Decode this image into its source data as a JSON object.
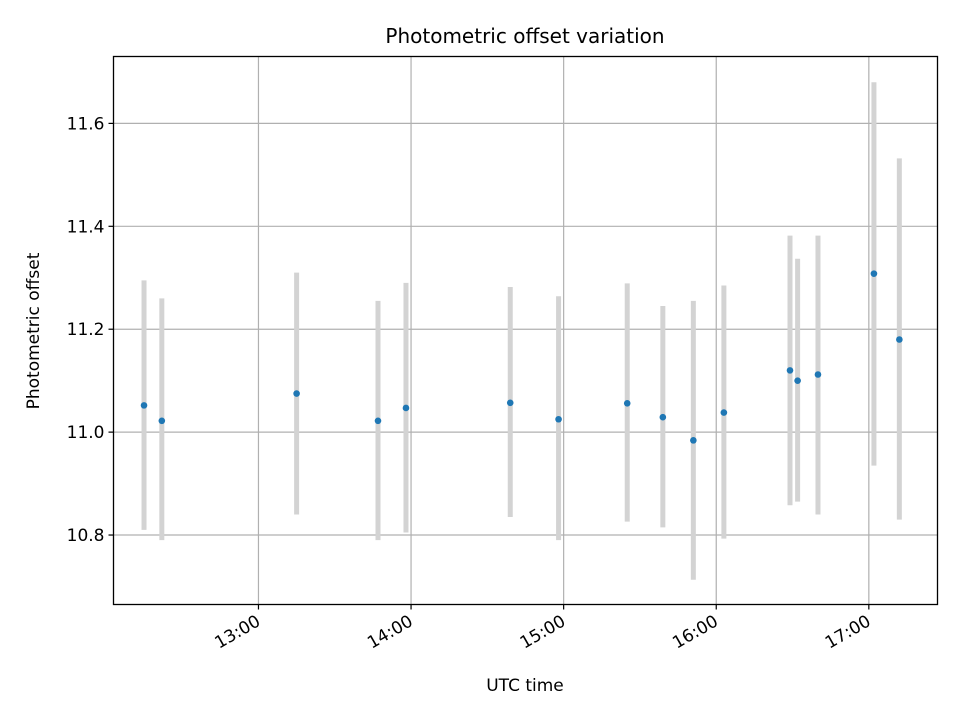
{
  "chart_data": {
    "type": "scatter",
    "title": "Photometric offset variation",
    "xlabel": "UTC time",
    "ylabel": "Photometric offset",
    "x_tick_labels": [
      "13:00",
      "14:00",
      "15:00",
      "16:00",
      "17:00"
    ],
    "y_tick_labels": [
      "10.8",
      "11.0",
      "11.2",
      "11.4",
      "11.6"
    ],
    "xlim": [
      "12:03",
      "17:27"
    ],
    "ylim": [
      10.665,
      11.73
    ],
    "grid": true,
    "marker_color": "#1f77b4",
    "errorbar_color": "#d3d3d3",
    "series": [
      {
        "points": [
          {
            "x": "12:15",
            "y": 11.052,
            "ylo": 10.81,
            "yhi": 11.295
          },
          {
            "x": "12:22",
            "y": 11.022,
            "ylo": 10.79,
            "yhi": 11.26
          },
          {
            "x": "13:15",
            "y": 11.075,
            "ylo": 10.84,
            "yhi": 11.31
          },
          {
            "x": "13:47",
            "y": 11.022,
            "ylo": 10.79,
            "yhi": 11.255
          },
          {
            "x": "13:58",
            "y": 11.047,
            "ylo": 10.805,
            "yhi": 11.29
          },
          {
            "x": "14:39",
            "y": 11.057,
            "ylo": 10.835,
            "yhi": 11.282
          },
          {
            "x": "14:58",
            "y": 11.025,
            "ylo": 10.79,
            "yhi": 11.264
          },
          {
            "x": "15:25",
            "y": 11.056,
            "ylo": 10.826,
            "yhi": 11.289
          },
          {
            "x": "15:39",
            "y": 11.029,
            "ylo": 10.815,
            "yhi": 11.245
          },
          {
            "x": "15:51",
            "y": 10.984,
            "ylo": 10.713,
            "yhi": 11.255
          },
          {
            "x": "16:03",
            "y": 11.038,
            "ylo": 10.793,
            "yhi": 11.285
          },
          {
            "x": "16:29",
            "y": 11.12,
            "ylo": 10.858,
            "yhi": 11.382
          },
          {
            "x": "16:32",
            "y": 11.1,
            "ylo": 10.865,
            "yhi": 11.337
          },
          {
            "x": "16:40",
            "y": 11.112,
            "ylo": 10.84,
            "yhi": 11.382
          },
          {
            "x": "17:02",
            "y": 11.308,
            "ylo": 10.935,
            "yhi": 11.68
          },
          {
            "x": "17:12",
            "y": 11.18,
            "ylo": 10.83,
            "yhi": 11.532
          }
        ]
      }
    ]
  }
}
